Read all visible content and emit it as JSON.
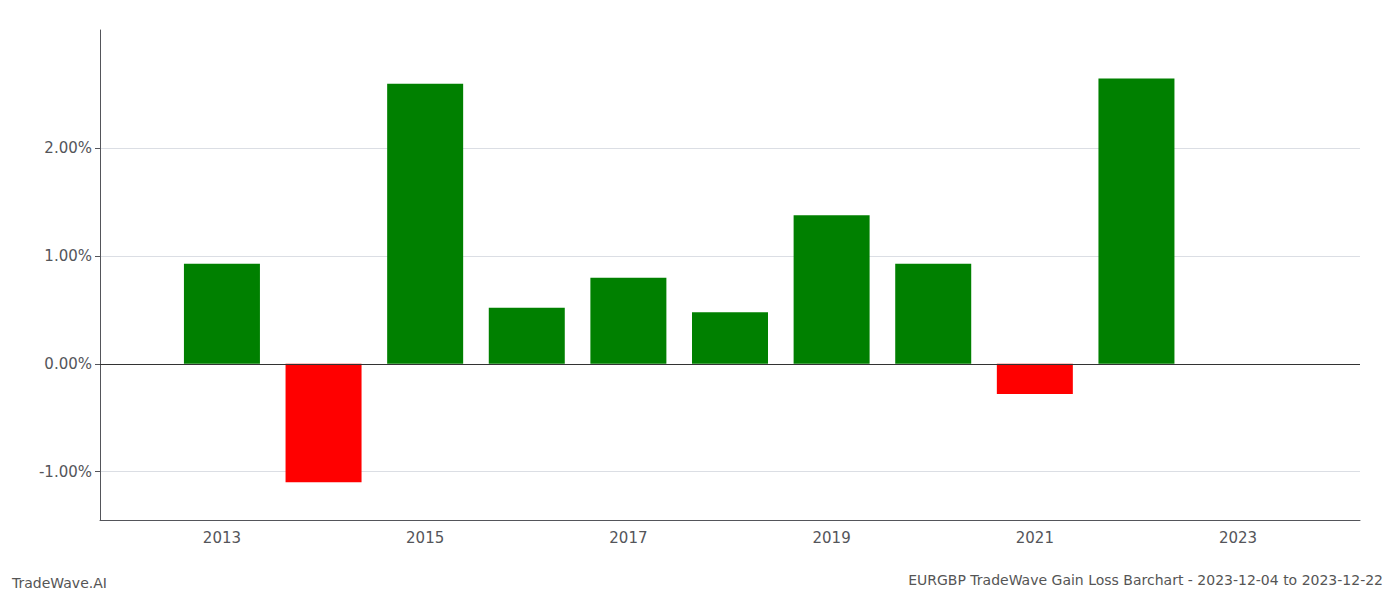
{
  "chart_data": {
    "type": "bar",
    "title": "EURGBP TradeWave Gain Loss Barchart - 2023-12-04 to 2023-12-22",
    "annotations": [
      "TradeWave.AI"
    ],
    "x": [
      2013,
      2014,
      2015,
      2016,
      2017,
      2018,
      2019,
      2020,
      2021,
      2022
    ],
    "values": [
      0.93,
      -1.1,
      2.6,
      0.52,
      0.8,
      0.48,
      1.38,
      0.93,
      -0.28,
      2.65
    ],
    "colors": [
      "#008000",
      "#ff0000",
      "#008000",
      "#008000",
      "#008000",
      "#008000",
      "#008000",
      "#008000",
      "#ff0000",
      "#008000"
    ],
    "xlim": [
      2011.8,
      2024.2
    ],
    "xticks": [
      2013,
      2015,
      2017,
      2019,
      2021,
      2023
    ],
    "ylim": [
      -1.45,
      3.1
    ],
    "yticks": [
      {
        "value": -1.0,
        "label": "-1.00%"
      },
      {
        "value": 0.0,
        "label": "0.00%"
      },
      {
        "value": 1.0,
        "label": "1.00%"
      },
      {
        "value": 2.0,
        "label": "2.00%"
      }
    ],
    "grid": true
  }
}
